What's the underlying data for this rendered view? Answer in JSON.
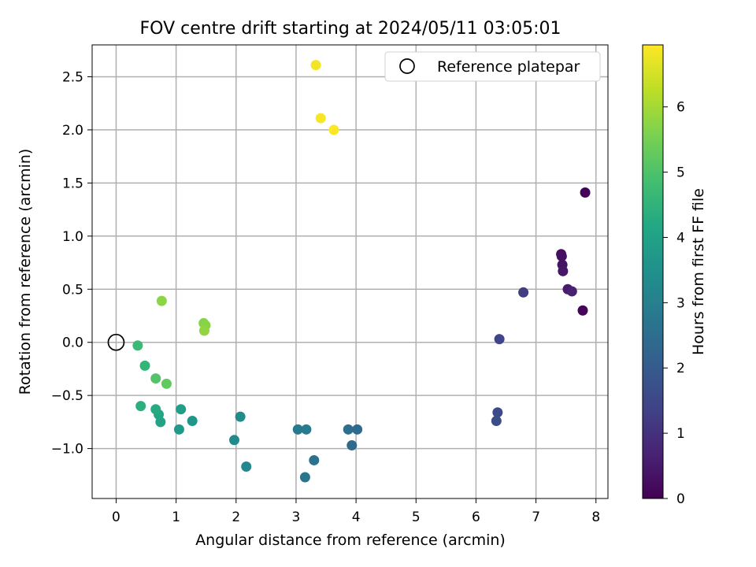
{
  "chart_data": {
    "type": "scatter",
    "title": "FOV centre drift starting at 2024/05/11 03:05:01",
    "xlabel": "Angular distance from reference (arcmin)",
    "ylabel": "Rotation from reference (arcmin)",
    "xlim": [
      -0.4,
      8.2
    ],
    "ylim": [
      -1.47,
      2.8
    ],
    "x_ticks": [
      0,
      1,
      2,
      3,
      4,
      5,
      6,
      7,
      8
    ],
    "y_ticks": [
      -1.0,
      -0.5,
      0.0,
      0.5,
      1.0,
      1.5,
      2.0,
      2.5
    ],
    "x_tick_labels": [
      "0",
      "1",
      "2",
      "3",
      "4",
      "5",
      "6",
      "7",
      "8"
    ],
    "y_tick_labels": [
      "−1.0",
      "−0.5",
      "0.0",
      "0.5",
      "1.0",
      "1.5",
      "2.0",
      "2.5"
    ],
    "grid": true,
    "legend": {
      "location": "upper right",
      "entries": [
        {
          "label": "Reference platepar",
          "marker": "hollow-circle",
          "color": "#000000"
        }
      ]
    },
    "reference_point": {
      "x": 0.0,
      "y": 0.0,
      "label": "Reference platepar"
    },
    "colorbar": {
      "label": "Hours from first FF file",
      "colormap": "viridis",
      "range": [
        0,
        6.95
      ],
      "ticks": [
        0,
        1,
        2,
        3,
        4,
        5,
        6
      ],
      "tick_labels": [
        "0",
        "1",
        "2",
        "3",
        "4",
        "5",
        "6"
      ]
    },
    "points": [
      {
        "x": 7.82,
        "y": 1.41,
        "hours": 0.05
      },
      {
        "x": 7.42,
        "y": 0.83,
        "hours": 0.25
      },
      {
        "x": 7.43,
        "y": 0.81,
        "hours": 0.3
      },
      {
        "x": 7.44,
        "y": 0.73,
        "hours": 0.38
      },
      {
        "x": 7.45,
        "y": 0.67,
        "hours": 0.45
      },
      {
        "x": 7.53,
        "y": 0.5,
        "hours": 0.55
      },
      {
        "x": 7.6,
        "y": 0.48,
        "hours": 0.65
      },
      {
        "x": 7.78,
        "y": 0.3,
        "hours": 0.1
      },
      {
        "x": 6.79,
        "y": 0.47,
        "hours": 1.25
      },
      {
        "x": 6.39,
        "y": 0.03,
        "hours": 1.45
      },
      {
        "x": 6.36,
        "y": -0.66,
        "hours": 1.58
      },
      {
        "x": 6.34,
        "y": -0.74,
        "hours": 1.66
      },
      {
        "x": 3.93,
        "y": -0.97,
        "hours": 2.4
      },
      {
        "x": 4.02,
        "y": -0.82,
        "hours": 2.45
      },
      {
        "x": 3.87,
        "y": -0.82,
        "hours": 2.5
      },
      {
        "x": 3.3,
        "y": -1.11,
        "hours": 2.62
      },
      {
        "x": 3.15,
        "y": -1.27,
        "hours": 2.7
      },
      {
        "x": 3.03,
        "y": -0.82,
        "hours": 2.8
      },
      {
        "x": 3.17,
        "y": -0.82,
        "hours": 2.85
      },
      {
        "x": 2.17,
        "y": -1.17,
        "hours": 3.2
      },
      {
        "x": 1.97,
        "y": -0.92,
        "hours": 3.3
      },
      {
        "x": 2.07,
        "y": -0.7,
        "hours": 3.35
      },
      {
        "x": 1.27,
        "y": -0.74,
        "hours": 3.65
      },
      {
        "x": 1.05,
        "y": -0.82,
        "hours": 3.75
      },
      {
        "x": 1.08,
        "y": -0.63,
        "hours": 3.9
      },
      {
        "x": 0.74,
        "y": -0.75,
        "hours": 4.05
      },
      {
        "x": 0.71,
        "y": -0.68,
        "hours": 4.15
      },
      {
        "x": 0.66,
        "y": -0.63,
        "hours": 4.25
      },
      {
        "x": 0.41,
        "y": -0.6,
        "hours": 4.4
      },
      {
        "x": 0.48,
        "y": -0.22,
        "hours": 4.55
      },
      {
        "x": 0.36,
        "y": -0.03,
        "hours": 4.7
      },
      {
        "x": 0.66,
        "y": -0.34,
        "hours": 5.05
      },
      {
        "x": 0.84,
        "y": -0.39,
        "hours": 5.25
      },
      {
        "x": 0.76,
        "y": 0.39,
        "hours": 5.75
      },
      {
        "x": 1.46,
        "y": 0.18,
        "hours": 5.65
      },
      {
        "x": 1.49,
        "y": 0.16,
        "hours": 5.7
      },
      {
        "x": 1.47,
        "y": 0.11,
        "hours": 5.8
      },
      {
        "x": 3.33,
        "y": 2.61,
        "hours": 6.82
      },
      {
        "x": 3.41,
        "y": 2.11,
        "hours": 6.88
      },
      {
        "x": 3.63,
        "y": 2.0,
        "hours": 6.93
      }
    ]
  }
}
